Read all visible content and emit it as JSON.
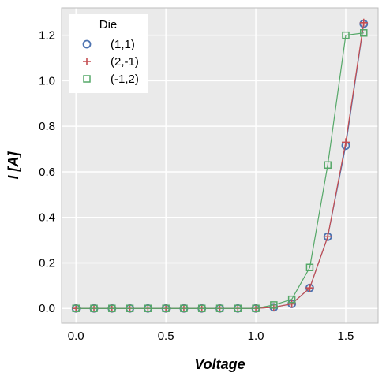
{
  "chart_data": {
    "type": "line",
    "title": "",
    "xlabel": "Voltage",
    "ylabel": "I [A]",
    "xlim": [
      -0.08,
      1.68
    ],
    "ylim": [
      -0.065,
      1.32
    ],
    "xticks": [
      0.0,
      0.5,
      1.0,
      1.5
    ],
    "yticks": [
      0.0,
      0.2,
      0.4,
      0.6,
      0.8,
      1.0,
      1.2
    ],
    "grid": true,
    "legend": {
      "title": "Die",
      "placement": "top-left"
    },
    "x": [
      0.0,
      0.1,
      0.2,
      0.3,
      0.4,
      0.5,
      0.6,
      0.7,
      0.8,
      0.9,
      1.0,
      1.1,
      1.2,
      1.3,
      1.4,
      1.5,
      1.6
    ],
    "series": [
      {
        "name": "(1,1)",
        "marker": "circle",
        "color": "#4c72b0",
        "values": [
          0,
          0,
          0,
          0,
          0,
          0,
          0,
          0,
          0,
          0,
          0,
          0.005,
          0.02,
          0.09,
          0.315,
          0.715,
          1.25
        ]
      },
      {
        "name": "(2,-1)",
        "marker": "plus",
        "color": "#c44e52",
        "values": [
          0,
          0,
          0,
          0,
          0,
          0,
          0,
          0,
          0,
          0,
          0,
          0.005,
          0.02,
          0.09,
          0.315,
          0.73,
          1.255
        ]
      },
      {
        "name": "(-1,2)",
        "marker": "square",
        "color": "#55a868",
        "values": [
          0,
          0,
          0,
          0,
          0,
          0,
          0,
          0,
          0,
          0,
          0,
          0.015,
          0.04,
          0.18,
          0.63,
          1.2,
          1.21
        ]
      }
    ]
  }
}
